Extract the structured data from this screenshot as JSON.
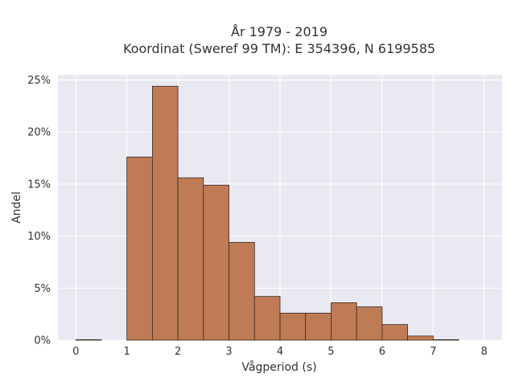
{
  "chart_data": {
    "type": "bar",
    "title_line1": "År 1979 - 2019",
    "title_line2": "Koordinat (Sweref 99 TM): E 354396, N 6199585",
    "xlabel": "Vågperiod (s)",
    "ylabel": "Andel",
    "xlim": [
      -0.35,
      8.35
    ],
    "ylim": [
      0,
      0.255
    ],
    "xticks": [
      0,
      1,
      2,
      3,
      4,
      5,
      6,
      7,
      8
    ],
    "xtick_labels": [
      "0",
      "1",
      "2",
      "3",
      "4",
      "5",
      "6",
      "7",
      "8"
    ],
    "yticks": [
      0,
      0.05,
      0.1,
      0.15,
      0.2,
      0.25
    ],
    "ytick_labels": [
      "0%",
      "5%",
      "10%",
      "15%",
      "20%",
      "25%"
    ],
    "bin_width": 0.5,
    "bins": [
      {
        "x0": 0.0,
        "value": 0.0005
      },
      {
        "x0": 0.5,
        "value": 0.0
      },
      {
        "x0": 1.0,
        "value": 0.176
      },
      {
        "x0": 1.5,
        "value": 0.244
      },
      {
        "x0": 2.0,
        "value": 0.156
      },
      {
        "x0": 2.5,
        "value": 0.149
      },
      {
        "x0": 3.0,
        "value": 0.094
      },
      {
        "x0": 3.5,
        "value": 0.042
      },
      {
        "x0": 4.0,
        "value": 0.026
      },
      {
        "x0": 4.5,
        "value": 0.026
      },
      {
        "x0": 5.0,
        "value": 0.036
      },
      {
        "x0": 5.5,
        "value": 0.032
      },
      {
        "x0": 6.0,
        "value": 0.015
      },
      {
        "x0": 6.5,
        "value": 0.004
      },
      {
        "x0": 7.0,
        "value": 0.0005
      }
    ],
    "grid": true,
    "colors": {
      "bar_fill": "#bf7b56",
      "bar_edge": "#3a2a20",
      "plot_bg": "#e9e9f2",
      "grid": "#ffffff"
    }
  }
}
